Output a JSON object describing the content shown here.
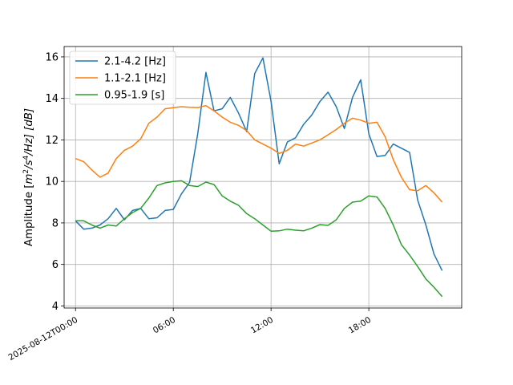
{
  "chart_data": {
    "type": "line",
    "title": "",
    "xlabel": "",
    "ylabel_parts": {
      "pre": "Amplitude [",
      "m": "m",
      "m_exp": "2",
      "s": "/s",
      "s_exp": "4",
      "post": "/Hz] [dB]"
    },
    "x_ticks": [
      {
        "hours": 0,
        "label": "2025-08-12T00:00"
      },
      {
        "hours": 6,
        "label": "06:00"
      },
      {
        "hours": 12,
        "label": "12:00"
      },
      {
        "hours": 18,
        "label": "18:00"
      }
    ],
    "y_ticks": [
      4,
      6,
      8,
      10,
      12,
      14,
      16
    ],
    "xlim_hours": [
      -0.7,
      23.7
    ],
    "ylim": [
      3.9,
      16.5
    ],
    "grid": true,
    "legend_position": "top-left",
    "series": [
      {
        "name": "2.1-4.2 [Hz]",
        "color": "#1f77b4",
        "points": [
          [
            0,
            8.1
          ],
          [
            0.5,
            7.7
          ],
          [
            1,
            7.75
          ],
          [
            1.5,
            7.9
          ],
          [
            2,
            8.2
          ],
          [
            2.5,
            8.7
          ],
          [
            3,
            8.15
          ],
          [
            3.5,
            8.6
          ],
          [
            4,
            8.7
          ],
          [
            4.5,
            8.2
          ],
          [
            5,
            8.25
          ],
          [
            5.5,
            8.6
          ],
          [
            6,
            8.65
          ],
          [
            6.5,
            9.4
          ],
          [
            7,
            9.95
          ],
          [
            7.5,
            12.3
          ],
          [
            8,
            15.25
          ],
          [
            8.5,
            13.4
          ],
          [
            9,
            13.5
          ],
          [
            9.5,
            14.05
          ],
          [
            10,
            13.3
          ],
          [
            10.5,
            12.4
          ],
          [
            11,
            15.2
          ],
          [
            11.5,
            15.95
          ],
          [
            12,
            13.85
          ],
          [
            12.5,
            10.85
          ],
          [
            13,
            11.9
          ],
          [
            13.5,
            12.1
          ],
          [
            14,
            12.75
          ],
          [
            14.5,
            13.2
          ],
          [
            15,
            13.85
          ],
          [
            15.5,
            14.3
          ],
          [
            16,
            13.6
          ],
          [
            16.5,
            12.55
          ],
          [
            17,
            14.05
          ],
          [
            17.5,
            14.9
          ],
          [
            18,
            12.3
          ],
          [
            18.5,
            11.2
          ],
          [
            19,
            11.25
          ],
          [
            19.5,
            11.8
          ],
          [
            20,
            11.6
          ],
          [
            20.5,
            11.4
          ],
          [
            21,
            9.1
          ],
          [
            21.5,
            7.9
          ],
          [
            22,
            6.5
          ],
          [
            22.5,
            5.7
          ]
        ]
      },
      {
        "name": "1.1-2.1 [Hz]",
        "color": "#ff7f0e",
        "points": [
          [
            0,
            11.1
          ],
          [
            0.5,
            10.95
          ],
          [
            1,
            10.55
          ],
          [
            1.5,
            10.2
          ],
          [
            2,
            10.4
          ],
          [
            2.5,
            11.1
          ],
          [
            3,
            11.5
          ],
          [
            3.5,
            11.7
          ],
          [
            4,
            12.05
          ],
          [
            4.5,
            12.8
          ],
          [
            5,
            13.1
          ],
          [
            5.5,
            13.5
          ],
          [
            6,
            13.55
          ],
          [
            6.5,
            13.6
          ],
          [
            7,
            13.57
          ],
          [
            7.5,
            13.56
          ],
          [
            8,
            13.65
          ],
          [
            8.5,
            13.4
          ],
          [
            9,
            13.1
          ],
          [
            9.5,
            12.85
          ],
          [
            10,
            12.7
          ],
          [
            10.5,
            12.45
          ],
          [
            11,
            12.0
          ],
          [
            11.5,
            11.8
          ],
          [
            12,
            11.6
          ],
          [
            12.5,
            11.35
          ],
          [
            13,
            11.5
          ],
          [
            13.5,
            11.8
          ],
          [
            14,
            11.7
          ],
          [
            14.5,
            11.85
          ],
          [
            15,
            12.0
          ],
          [
            15.5,
            12.25
          ],
          [
            16,
            12.5
          ],
          [
            16.5,
            12.8
          ],
          [
            17,
            13.05
          ],
          [
            17.5,
            12.95
          ],
          [
            18,
            12.8
          ],
          [
            18.5,
            12.85
          ],
          [
            19,
            12.15
          ],
          [
            19.5,
            11.05
          ],
          [
            20,
            10.2
          ],
          [
            20.5,
            9.6
          ],
          [
            21,
            9.55
          ],
          [
            21.5,
            9.8
          ],
          [
            22,
            9.45
          ],
          [
            22.5,
            9.0
          ]
        ]
      },
      {
        "name": "0.95-1.9 [s]",
        "color": "#2ca02c",
        "points": [
          [
            0,
            8.1
          ],
          [
            0.5,
            8.1
          ],
          [
            1,
            7.9
          ],
          [
            1.5,
            7.75
          ],
          [
            2,
            7.9
          ],
          [
            2.5,
            7.85
          ],
          [
            3,
            8.2
          ],
          [
            3.5,
            8.5
          ],
          [
            4,
            8.7
          ],
          [
            4.5,
            9.2
          ],
          [
            5,
            9.8
          ],
          [
            5.5,
            9.93
          ],
          [
            6,
            10.0
          ],
          [
            6.5,
            10.03
          ],
          [
            7,
            9.8
          ],
          [
            7.5,
            9.75
          ],
          [
            8,
            9.97
          ],
          [
            8.5,
            9.85
          ],
          [
            9,
            9.3
          ],
          [
            9.5,
            9.05
          ],
          [
            10,
            8.85
          ],
          [
            10.5,
            8.45
          ],
          [
            11,
            8.2
          ],
          [
            11.5,
            7.9
          ],
          [
            12,
            7.6
          ],
          [
            12.5,
            7.62
          ],
          [
            13,
            7.7
          ],
          [
            13.5,
            7.65
          ],
          [
            14,
            7.62
          ],
          [
            14.5,
            7.75
          ],
          [
            15,
            7.92
          ],
          [
            15.5,
            7.88
          ],
          [
            16,
            8.15
          ],
          [
            16.5,
            8.7
          ],
          [
            17,
            9.0
          ],
          [
            17.5,
            9.05
          ],
          [
            18,
            9.3
          ],
          [
            18.5,
            9.25
          ],
          [
            19,
            8.7
          ],
          [
            19.5,
            7.9
          ],
          [
            20,
            6.95
          ],
          [
            20.5,
            6.45
          ],
          [
            21,
            5.9
          ],
          [
            21.5,
            5.3
          ],
          [
            22,
            4.9
          ],
          [
            22.5,
            4.45
          ]
        ]
      }
    ]
  }
}
